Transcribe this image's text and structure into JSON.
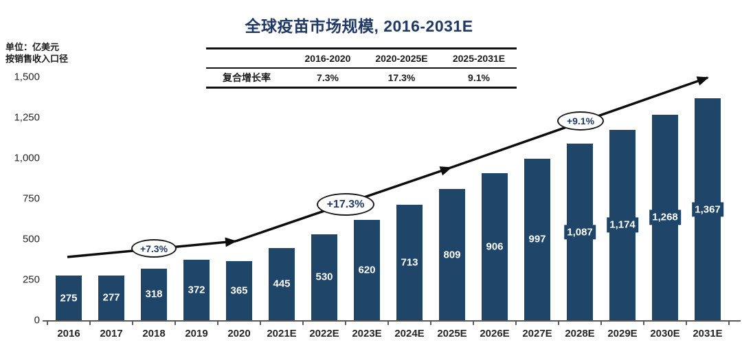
{
  "title": "全球疫苗市场规模, 2016-2031E",
  "unit_note": {
    "line1": "单位：亿美元",
    "line2": "按销售收入口径"
  },
  "cagr_table": {
    "row_label": "复合增长率",
    "columns": [
      "2016-2020",
      "2020-2025E",
      "2025-2031E"
    ],
    "values": [
      "7.3%",
      "17.3%",
      "9.1%"
    ]
  },
  "growth_annotations": [
    "+7.3%",
    "+17.3%",
    "+9.1%"
  ],
  "colors": {
    "bar": "#1F4568",
    "title_text": "#1F3864",
    "annotation_text": "#1F3864",
    "axis": "#595959",
    "value_label_text": "#FFFFFF"
  },
  "chart_data": {
    "type": "bar",
    "title": "全球疫苗市场规模, 2016-2031E",
    "unit": "亿美元",
    "caliber_note": "按销售收入口径",
    "categories": [
      "2016",
      "2017",
      "2018",
      "2019",
      "2020",
      "2021E",
      "2022E",
      "2023E",
      "2024E",
      "2025E",
      "2026E",
      "2027E",
      "2028E",
      "2029E",
      "2030E",
      "2031E"
    ],
    "values": [
      275,
      277,
      318,
      372,
      365,
      445,
      530,
      620,
      713,
      809,
      906,
      997,
      1087,
      1174,
      1268,
      1367
    ],
    "value_labels": [
      "275",
      "277",
      "318",
      "372",
      "365",
      "445",
      "530",
      "620",
      "713",
      "809",
      "906",
      "997",
      "1,087",
      "1,174",
      "1,268",
      "1,367"
    ],
    "y_ticks": [
      "1,500",
      "1,250",
      "1,000",
      "750",
      "500",
      "250",
      "0"
    ],
    "ylim": [
      0,
      1500
    ],
    "xlabel": "",
    "ylabel": "亿美元",
    "grid": false,
    "legend": "none",
    "bar_color": "#1F4568",
    "cagr_segments": [
      {
        "period": "2016-2020",
        "label": "+7.3%"
      },
      {
        "period": "2020-2025E",
        "label": "+17.3%"
      },
      {
        "period": "2025-2031E",
        "label": "+9.1%"
      }
    ]
  }
}
